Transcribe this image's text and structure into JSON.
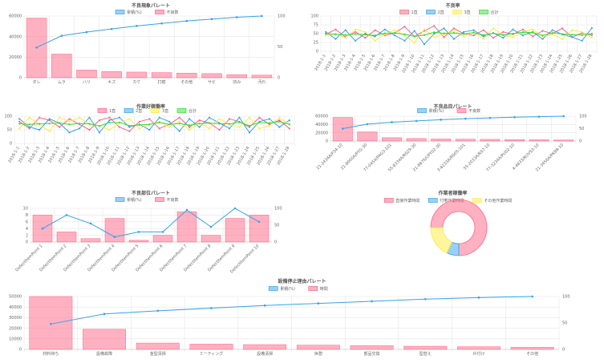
{
  "colors": {
    "blue": "#36a2eb",
    "pink": "#ff6384",
    "yellow": "#ffeb3b",
    "green": "#33dd33",
    "bar_fill": "rgba(255,99,132,0.5)"
  },
  "chart_data": [
    {
      "id": "c1",
      "type": "bar",
      "title": "不良現象パレート",
      "legend": [
        "累積(%)",
        "不良数"
      ],
      "categories": [
        "ダレ",
        "ムラ",
        "ハリ",
        "キズ",
        "カケ",
        "打痕",
        "その他",
        "サビ",
        "凹み",
        "汚れ"
      ],
      "series": [
        {
          "name": "不良数",
          "type": "bar",
          "axis": "left",
          "values": [
            58000,
            23000,
            7500,
            6000,
            5500,
            5000,
            4500,
            4000,
            3000,
            2500
          ]
        },
        {
          "name": "累積(%)",
          "type": "line",
          "axis": "right",
          "values": [
            49,
            68,
            74,
            79,
            84,
            88,
            92,
            95,
            98,
            100
          ]
        }
      ],
      "left_ticks": [
        0,
        20000,
        40000,
        60000
      ],
      "ylim_left": [
        0,
        60000
      ],
      "right_ticks": [
        0,
        50,
        100
      ],
      "ylim_right": [
        0,
        100
      ],
      "legend_position": "top"
    },
    {
      "id": "c2",
      "type": "line",
      "title": "不良率",
      "legend": [
        "1直",
        "2直",
        "3直",
        "合計"
      ],
      "categories": [
        "2018-1-1",
        "2018-1-2",
        "2018-1-3",
        "2018-1-4",
        "2018-1-5",
        "2018-1-6",
        "2018-1-7",
        "2018-1-8",
        "2018-1-9",
        "2018-1-10",
        "2018-1-11",
        "2018-1-12",
        "2018-1-13",
        "2018-1-14",
        "2018-1-15",
        "2018-1-16",
        "2018-1-17",
        "2018-1-18",
        "2018-1-19",
        "2018-1-20",
        "2018-1-21",
        "2018-1-22",
        "2018-1-23",
        "2018-1-24",
        "2018-1-25",
        "2018-1-26",
        "2018-1-27",
        "2018-1-28"
      ],
      "series": [
        {
          "name": "1直",
          "color": "pink",
          "values": [
            48,
            62,
            40,
            55,
            38,
            60,
            45,
            52,
            70,
            42,
            58,
            72,
            40,
            65,
            50,
            45,
            60,
            38,
            55,
            48,
            62,
            42,
            58,
            50,
            65,
            40,
            52,
            45
          ]
        },
        {
          "name": "2直",
          "color": "blue",
          "values": [
            55,
            35,
            60,
            30,
            50,
            42,
            62,
            45,
            30,
            58,
            20,
            50,
            65,
            35,
            55,
            60,
            42,
            52,
            38,
            62,
            45,
            55,
            35,
            60,
            48,
            40,
            30,
            66
          ]
        },
        {
          "name": "3直",
          "color": "yellow",
          "values": [
            45,
            50,
            38,
            62,
            55,
            30,
            48,
            60,
            45,
            25,
            62,
            40,
            48,
            58,
            42,
            55,
            35,
            65,
            45,
            40,
            55,
            62,
            42,
            48,
            35,
            60,
            55,
            38
          ]
        },
        {
          "name": "合計",
          "color": "green",
          "values": [
            50,
            48,
            46,
            49,
            47,
            45,
            51,
            52,
            48,
            42,
            46,
            54,
            51,
            52,
            49,
            53,
            46,
            51,
            46,
            50,
            54,
            53,
            45,
            52,
            49,
            47,
            46,
            50
          ]
        }
      ],
      "ticks": [
        0,
        25,
        50,
        75,
        100
      ],
      "ylim": [
        0,
        100
      ],
      "legend_position": "top"
    },
    {
      "id": "c3",
      "type": "line",
      "title": "作業好稼働率",
      "legend": [
        "1直",
        "2直",
        "3直",
        "合計"
      ],
      "categories": [
        "2018-1-1",
        "2018-1-2",
        "2018-1-3",
        "2018-1-4",
        "2018-1-5",
        "2018-1-6",
        "2018-1-7",
        "2018-1-8",
        "2018-1-9",
        "2018-1-10",
        "2018-1-11",
        "2018-1-12",
        "2018-1-13",
        "2018-1-14",
        "2018-1-15",
        "2018-1-16",
        "2018-1-17",
        "2018-1-18",
        "2018-1-19",
        "2018-1-20",
        "2018-1-21",
        "2018-1-22",
        "2018-1-23",
        "2018-1-24",
        "2018-1-25",
        "2018-1-26",
        "2018-1-27",
        "2018-1-28"
      ],
      "series": [
        {
          "name": "1直",
          "color": "pink",
          "values": [
            80,
            55,
            95,
            85,
            60,
            90,
            70,
            50,
            85,
            95,
            60,
            45,
            80,
            90,
            55,
            70,
            95,
            60,
            85,
            75,
            50,
            90,
            80,
            60,
            95,
            70,
            85,
            55
          ]
        },
        {
          "name": "2直",
          "color": "blue",
          "values": [
            90,
            60,
            50,
            90,
            75,
            40,
            55,
            95,
            40,
            85,
            95,
            60,
            70,
            50,
            95,
            80,
            45,
            90,
            60,
            95,
            75,
            55,
            95,
            40,
            80,
            90,
            60,
            85
          ]
        },
        {
          "name": "3直",
          "color": "yellow",
          "values": [
            55,
            95,
            70,
            45,
            95,
            80,
            95,
            70,
            65,
            50,
            75,
            90,
            55,
            70,
            80,
            60,
            80,
            50,
            75,
            55,
            90,
            70,
            60,
            95,
            55,
            65,
            95,
            70
          ]
        },
        {
          "name": "合計",
          "color": "green",
          "values": [
            72,
            70,
            72,
            73,
            75,
            70,
            73,
            72,
            64,
            77,
            77,
            65,
            68,
            70,
            77,
            70,
            73,
            67,
            73,
            75,
            72,
            72,
            78,
            65,
            77,
            75,
            80,
            70
          ]
        }
      ],
      "ticks": [
        0,
        50,
        100
      ],
      "ylim": [
        0,
        100
      ],
      "legend_position": "top"
    },
    {
      "id": "c4",
      "type": "bar",
      "title": "不良品目パレート",
      "legend": [
        "累積(%)",
        "不良数"
      ],
      "categories": [
        "21-2434A/P34-10",
        "21-8000A/PYG-30",
        "77-0454/PAG3-101",
        "55-8334A/RS29-30",
        "21-8876/UPY02-30",
        "3-8233A/RS05-101",
        "55-2033A/RS7-10",
        "77-3234A/PU02-10",
        "4-4833/RUVS3-10",
        "21-3456A/PK88-10"
      ],
      "series": [
        {
          "name": "不良数",
          "type": "bar",
          "axis": "left",
          "values": [
            57000,
            22000,
            8000,
            6000,
            5000,
            4500,
            4000,
            3500,
            3000,
            2500
          ]
        },
        {
          "name": "累積(%)",
          "type": "line",
          "axis": "right",
          "values": [
            50,
            68,
            76,
            81,
            86,
            90,
            93,
            96,
            98,
            100
          ]
        }
      ],
      "left_ticks": [
        0,
        20000,
        40000,
        60000
      ],
      "ylim_left": [
        0,
        60000
      ],
      "right_ticks": [
        0,
        50,
        100
      ],
      "ylim_right": [
        0,
        100
      ],
      "legend_position": "top"
    },
    {
      "id": "c5",
      "type": "bar",
      "title": "不良部位パレート",
      "legend": [
        "累積(%)",
        "不良数"
      ],
      "categories": [
        "DefectItemPoint 1",
        "DefectItemPoint 2",
        "DefectItemPoint 3",
        "DefectItemPoint 4",
        "DefectItemPoint 5",
        "DefectItemPoint 6",
        "DefectItemPoint 7",
        "DefectItemPoint 8",
        "DefectItemPoint 9",
        "DefectItemPoint 10"
      ],
      "series": [
        {
          "name": "不良数",
          "type": "bar",
          "axis": "left",
          "values": [
            8,
            3,
            1,
            7,
            0.5,
            2,
            9,
            2,
            7,
            8
          ]
        },
        {
          "name": "累積(%)",
          "type": "line",
          "axis": "right",
          "values": [
            40,
            80,
            55,
            15,
            30,
            30,
            95,
            45,
            100,
            60
          ]
        }
      ],
      "left_ticks": [
        0,
        2,
        4,
        6,
        8,
        10
      ],
      "ylim_left": [
        0,
        10
      ],
      "right_ticks": [
        0,
        50,
        100
      ],
      "ylim_right": [
        0,
        100
      ],
      "legend_position": "top"
    },
    {
      "id": "c6",
      "type": "pie",
      "title": "作業者稼働率",
      "legend": [
        "直接作業時間",
        "付帯作業時間",
        "その他作業時間"
      ],
      "series": [
        {
          "name": "直接作業時間",
          "value": 75,
          "color": "pink"
        },
        {
          "name": "付帯作業時間",
          "value": 7,
          "color": "blue"
        },
        {
          "name": "その他作業時間",
          "value": 18,
          "color": "yellow"
        }
      ],
      "legend_position": "top"
    },
    {
      "id": "c7",
      "type": "bar",
      "title": "設備停止理由パレート",
      "legend": [
        "累積(%)",
        "時間"
      ],
      "categories": [
        "材料待ち",
        "設備故障",
        "金型清掃",
        "ミーティング",
        "設備清掃",
        "休憩",
        "部品交換",
        "型替え",
        "片付け",
        "その他"
      ],
      "series": [
        {
          "name": "時間",
          "type": "bar",
          "axis": "left",
          "values": [
            50000,
            19000,
            6000,
            5000,
            4500,
            4000,
            3500,
            3000,
            2500,
            2000
          ]
        },
        {
          "name": "累積(%)",
          "type": "line",
          "axis": "right",
          "values": [
            48,
            67,
            73,
            78,
            83,
            87,
            91,
            95,
            98,
            100
          ]
        }
      ],
      "left_ticks": [
        0,
        10000,
        20000,
        30000,
        40000,
        50000
      ],
      "ylim_left": [
        0,
        50000
      ],
      "right_ticks": [
        0,
        50,
        100
      ],
      "ylim_right": [
        0,
        100
      ],
      "legend_position": "top"
    }
  ]
}
